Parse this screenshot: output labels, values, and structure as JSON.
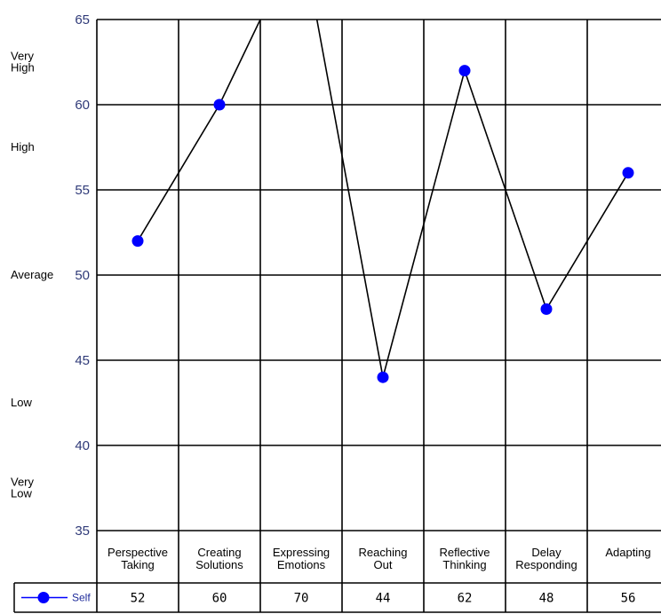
{
  "chart_data": {
    "type": "line",
    "title": "",
    "xlabel": "",
    "ylabel": "",
    "ylim": [
      35,
      65
    ],
    "yticks": [
      "35",
      "40",
      "45",
      "50",
      "55",
      "60",
      "65"
    ],
    "grid": true,
    "bands": [
      {
        "label": "Very High",
        "y": 62.5
      },
      {
        "label": "High",
        "y": 57.5
      },
      {
        "label": "Average",
        "y": 50
      },
      {
        "label": "Low",
        "y": 42.5
      },
      {
        "label": "Very Low",
        "y": 37.5
      }
    ],
    "categories": [
      "Perspective Taking",
      "Creating Solutions",
      "Expressing Emotions",
      "Reaching Out",
      "Reflective Thinking",
      "Delay Responding",
      "Adapting"
    ],
    "series": [
      {
        "name": "Self",
        "color": "#0000ff",
        "line_color": "#000000",
        "values": [
          52,
          60,
          70,
          44,
          62,
          48,
          56
        ],
        "value_labels": [
          "52",
          "60",
          "70",
          "44",
          "62",
          "48",
          "56"
        ]
      }
    ],
    "legend": "table-bottom-left"
  }
}
